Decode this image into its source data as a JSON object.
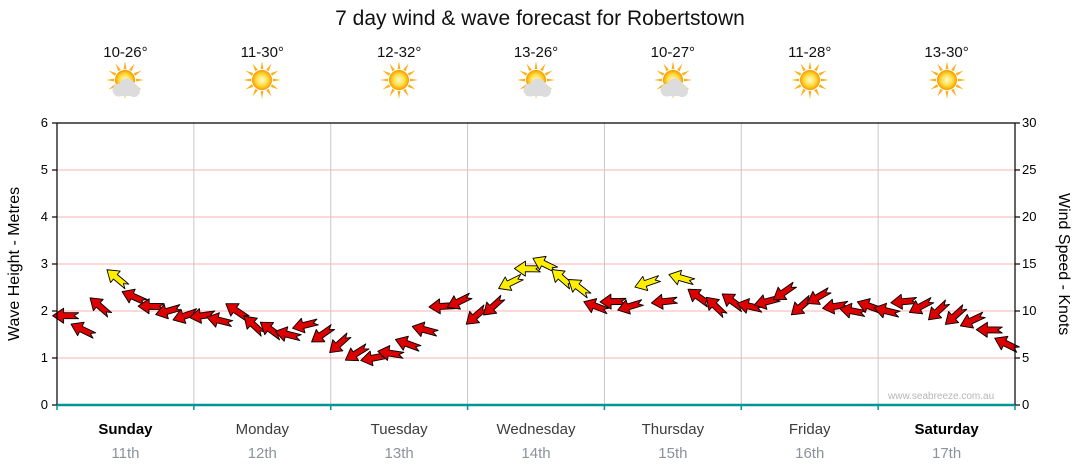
{
  "title": "7 day wind & wave forecast for Robertstown",
  "watermark": "www.seabreeze.com.au",
  "days": [
    {
      "name": "Sunday",
      "date": "11th",
      "temp": "10-26°",
      "icon": "sun-cloud",
      "bold": true
    },
    {
      "name": "Monday",
      "date": "12th",
      "temp": "11-30°",
      "icon": "sun",
      "bold": false
    },
    {
      "name": "Tuesday",
      "date": "13th",
      "temp": "12-32°",
      "icon": "sun",
      "bold": false
    },
    {
      "name": "Wednesday",
      "date": "14th",
      "temp": "13-26°",
      "icon": "sun-cloud",
      "bold": false
    },
    {
      "name": "Thursday",
      "date": "15th",
      "temp": "10-27°",
      "icon": "sun-cloud",
      "bold": false
    },
    {
      "name": "Friday",
      "date": "16th",
      "temp": "11-28°",
      "icon": "sun",
      "bold": false
    },
    {
      "name": "Saturday",
      "date": "17th",
      "temp": "13-30°",
      "icon": "sun",
      "bold": true
    }
  ],
  "axes": {
    "left_label": "Wave Height - Metres",
    "right_label": "Wind Speed - Knots",
    "left_ticks": [
      0,
      1,
      2,
      3,
      4,
      5,
      6
    ],
    "right_ticks": [
      0,
      5,
      10,
      15,
      20,
      25,
      30
    ],
    "left_range": [
      0,
      6
    ],
    "right_range": [
      0,
      30
    ]
  },
  "colors": {
    "arrow_red": "#dd0000",
    "arrow_yellow": "#ffee00",
    "grid_pink": "#ffb0b0",
    "grid_gray": "#c8c8c8",
    "axis_teal": "#009595",
    "date_gray": "#8a939c"
  },
  "chart_data": {
    "type": "wind-arrows",
    "title": "7 day wind & wave forecast for Robertstown",
    "x_unit": "days",
    "x_range": [
      0,
      7
    ],
    "x_categories": [
      "Sunday 11th",
      "Monday 12th",
      "Tuesday 13th",
      "Wednesday 14th",
      "Thursday 15th",
      "Friday 16th",
      "Saturday 17th"
    ],
    "y_unit": "knots",
    "y_range": [
      0,
      30
    ],
    "y2_unit": "metres",
    "y2_range": [
      0,
      6
    ],
    "yellow_threshold_knots": 12.5,
    "grid": true,
    "points_format": [
      "time_in_days",
      "wind_speed_knots",
      "arrow_direction_deg"
    ],
    "points": [
      [
        0.0625,
        9.5,
        180
      ],
      [
        0.1875,
        8,
        206
      ],
      [
        0.3125,
        10.5,
        221
      ],
      [
        0.4375,
        13.5,
        220
      ],
      [
        0.5625,
        11.5,
        204
      ],
      [
        0.6875,
        10.5,
        181
      ],
      [
        0.8125,
        10,
        164
      ],
      [
        0.9375,
        9.5,
        161
      ],
      [
        1.0625,
        9.5,
        172
      ],
      [
        1.1875,
        9,
        194
      ],
      [
        1.3125,
        10,
        214
      ],
      [
        1.4375,
        8.5,
        223
      ],
      [
        1.5625,
        8,
        216
      ],
      [
        1.6875,
        7.5,
        194
      ],
      [
        1.8125,
        8.5,
        166
      ],
      [
        1.9375,
        7.5,
        145
      ],
      [
        2.0625,
        6.5,
        138
      ],
      [
        2.1875,
        5.5,
        148
      ],
      [
        2.3125,
        5,
        169
      ],
      [
        2.4375,
        5.5,
        189
      ],
      [
        2.5625,
        6.5,
        200
      ],
      [
        2.6875,
        8,
        195
      ],
      [
        2.8125,
        10.5,
        177
      ],
      [
        2.9375,
        11,
        154
      ],
      [
        3.0625,
        9.5,
        139
      ],
      [
        3.1875,
        10.5,
        138
      ],
      [
        3.3125,
        13,
        154
      ],
      [
        3.4375,
        14.5,
        181
      ],
      [
        3.5625,
        15,
        206
      ],
      [
        3.6875,
        13.5,
        221
      ],
      [
        3.8125,
        12.5,
        218
      ],
      [
        3.9375,
        10.5,
        201
      ],
      [
        4.0625,
        11,
        179
      ],
      [
        4.1875,
        10.5,
        163
      ],
      [
        4.3125,
        13,
        161
      ],
      [
        4.4375,
        11,
        174
      ],
      [
        4.5625,
        13.5,
        196
      ],
      [
        4.6875,
        11.5,
        216
      ],
      [
        4.8125,
        10.5,
        224
      ],
      [
        4.9375,
        11,
        216
      ],
      [
        5.0625,
        10.5,
        193
      ],
      [
        5.1875,
        11,
        165
      ],
      [
        5.3125,
        12,
        145
      ],
      [
        5.4375,
        10.5,
        139
      ],
      [
        5.5625,
        11.5,
        150
      ],
      [
        5.6875,
        10.5,
        171
      ],
      [
        5.8125,
        10,
        191
      ],
      [
        5.9375,
        10.5,
        200
      ],
      [
        6.0625,
        10,
        194
      ],
      [
        6.1875,
        11,
        175
      ],
      [
        6.3125,
        10.5,
        152
      ],
      [
        6.4375,
        10,
        137
      ],
      [
        6.5625,
        9.5,
        138
      ],
      [
        6.6875,
        9,
        155
      ],
      [
        6.8125,
        8,
        181
      ],
      [
        6.9375,
        6.5,
        206
      ]
    ]
  }
}
